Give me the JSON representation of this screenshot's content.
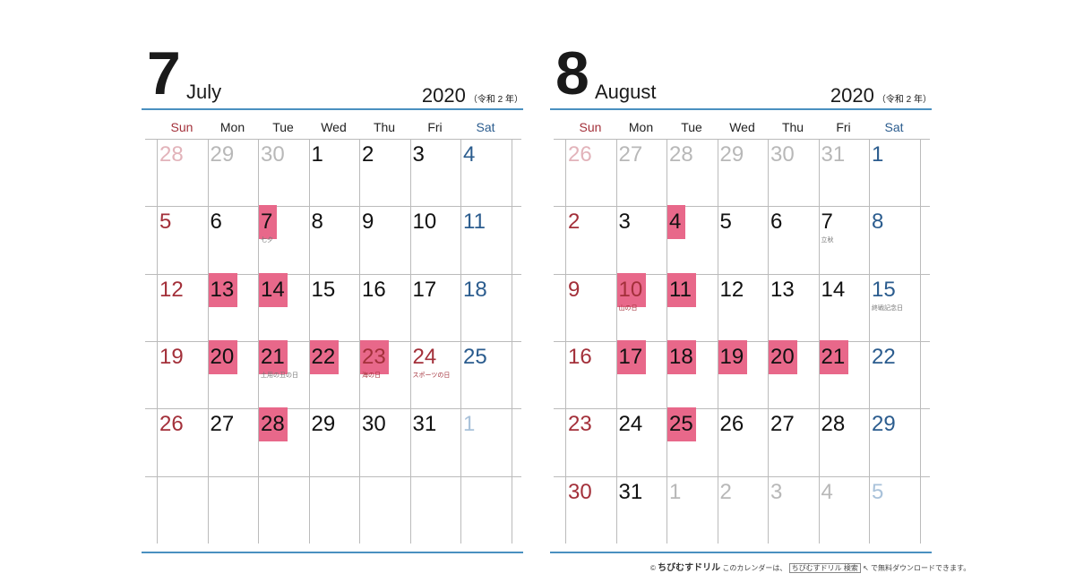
{
  "weekdays": [
    "Sun",
    "Mon",
    "Tue",
    "Wed",
    "Thu",
    "Fri",
    "Sat"
  ],
  "colors": {
    "sun": "#a3303a",
    "sat": "#2b5c8e",
    "highlight": "#e8688a",
    "prev_sun": "#e2b3ba",
    "prev": "#b8b8b8",
    "next_sat": "#a9c2da",
    "rule": "#4a90c0"
  },
  "months": [
    {
      "number": "7",
      "name": "July",
      "year": "2020",
      "era": "（令和 2 年）",
      "weeks": [
        [
          {
            "d": "28",
            "t": "prev"
          },
          {
            "d": "29",
            "t": "prev"
          },
          {
            "d": "30",
            "t": "prev"
          },
          {
            "d": "1"
          },
          {
            "d": "2"
          },
          {
            "d": "3"
          },
          {
            "d": "4"
          }
        ],
        [
          {
            "d": "5"
          },
          {
            "d": "6"
          },
          {
            "d": "7",
            "hl": true,
            "note": "七夕"
          },
          {
            "d": "8"
          },
          {
            "d": "9"
          },
          {
            "d": "10"
          },
          {
            "d": "11"
          }
        ],
        [
          {
            "d": "12"
          },
          {
            "d": "13",
            "hl": true
          },
          {
            "d": "14",
            "hl": true
          },
          {
            "d": "15"
          },
          {
            "d": "16"
          },
          {
            "d": "17"
          },
          {
            "d": "18"
          }
        ],
        [
          {
            "d": "19"
          },
          {
            "d": "20",
            "hl": true
          },
          {
            "d": "21",
            "hl": true,
            "note": "土用の丑の日"
          },
          {
            "d": "22",
            "hl": true
          },
          {
            "d": "23",
            "hl": true,
            "t": "holiday",
            "note": "海の日"
          },
          {
            "d": "24",
            "t": "holiday",
            "note": "スポーツの日"
          },
          {
            "d": "25"
          }
        ],
        [
          {
            "d": "26"
          },
          {
            "d": "27"
          },
          {
            "d": "28",
            "hl": true
          },
          {
            "d": "29"
          },
          {
            "d": "30"
          },
          {
            "d": "31"
          },
          {
            "d": "1",
            "t": "next"
          }
        ],
        []
      ]
    },
    {
      "number": "8",
      "name": "August",
      "year": "2020",
      "era": "（令和 2 年）",
      "weeks": [
        [
          {
            "d": "26",
            "t": "prev"
          },
          {
            "d": "27",
            "t": "prev"
          },
          {
            "d": "28",
            "t": "prev"
          },
          {
            "d": "29",
            "t": "prev"
          },
          {
            "d": "30",
            "t": "prev"
          },
          {
            "d": "31",
            "t": "prev"
          },
          {
            "d": "1"
          }
        ],
        [
          {
            "d": "2"
          },
          {
            "d": "3"
          },
          {
            "d": "4",
            "hl": true
          },
          {
            "d": "5"
          },
          {
            "d": "6"
          },
          {
            "d": "7",
            "note": "立秋"
          },
          {
            "d": "8"
          }
        ],
        [
          {
            "d": "9"
          },
          {
            "d": "10",
            "hl": true,
            "t": "holiday",
            "note": "山の日"
          },
          {
            "d": "11",
            "hl": true
          },
          {
            "d": "12"
          },
          {
            "d": "13"
          },
          {
            "d": "14"
          },
          {
            "d": "15",
            "note": "終戦記念日"
          }
        ],
        [
          {
            "d": "16"
          },
          {
            "d": "17",
            "hl": true
          },
          {
            "d": "18",
            "hl": true
          },
          {
            "d": "19",
            "hl": true
          },
          {
            "d": "20",
            "hl": true
          },
          {
            "d": "21",
            "hl": true
          },
          {
            "d": "22"
          }
        ],
        [
          {
            "d": "23"
          },
          {
            "d": "24"
          },
          {
            "d": "25",
            "hl": true
          },
          {
            "d": "26"
          },
          {
            "d": "27"
          },
          {
            "d": "28"
          },
          {
            "d": "29"
          }
        ],
        [
          {
            "d": "30"
          },
          {
            "d": "31"
          },
          {
            "d": "1",
            "t": "next"
          },
          {
            "d": "2",
            "t": "next"
          },
          {
            "d": "3",
            "t": "next"
          },
          {
            "d": "4",
            "t": "next"
          },
          {
            "d": "5",
            "t": "next"
          }
        ]
      ]
    }
  ],
  "footer": {
    "copyright": "©",
    "brand": "ちびむすドリル",
    "text1": "このカレンダーは、",
    "search_term": "ちびむすドリル",
    "search_button": "検索",
    "text2": "で無料ダウンロードできます。"
  }
}
